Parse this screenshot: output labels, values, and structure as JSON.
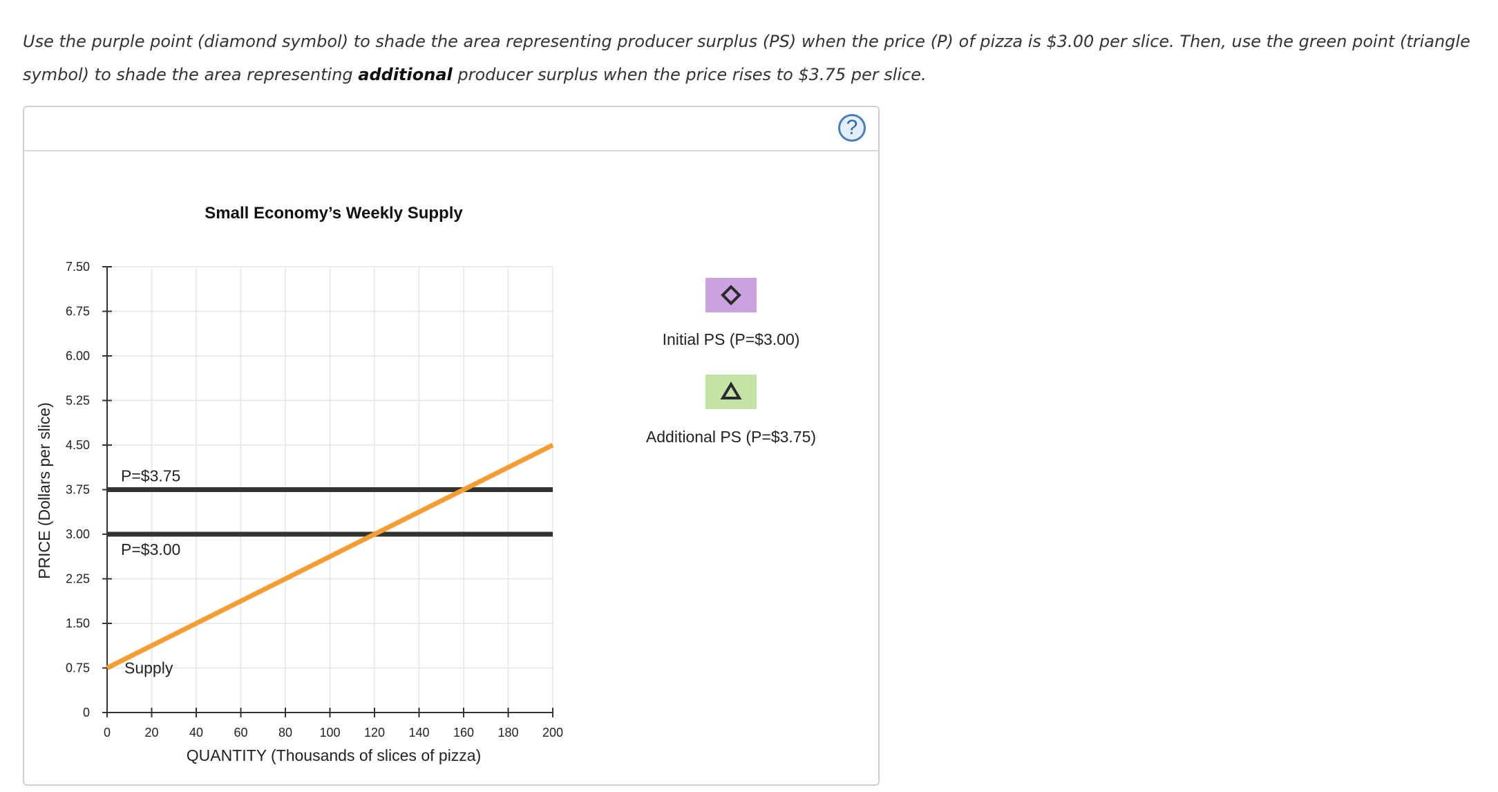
{
  "instructions": {
    "part1": "Use the purple point (diamond symbol) to shade the area representing producer surplus (PS) when the price (P) of pizza is $3.00 per slice. Then, use the green point (triangle symbol) to shade the area representing ",
    "bold": "additional",
    "part2": " producer surplus when the price rises to $3.75 per slice."
  },
  "help_button": {
    "label": "?",
    "icon": "question-circle-icon"
  },
  "colors": {
    "supply": "#F29E34",
    "price_line": "#333333",
    "grid": "#e6e6e6",
    "axis": "#333333",
    "initial_ps": "#C9A2DE",
    "additional_ps": "#C4E3A6"
  },
  "chart_data": {
    "type": "line",
    "title": "Small Economy’s Weekly Supply",
    "xlabel": "QUANTITY (Thousands of slices of pizza)",
    "ylabel": "PRICE (Dollars per slice)",
    "xlim": [
      0,
      200
    ],
    "ylim": [
      0,
      7.5
    ],
    "x_ticks": [
      0,
      20,
      40,
      60,
      80,
      100,
      120,
      140,
      160,
      180,
      200
    ],
    "y_ticks": [
      0,
      0.75,
      1.5,
      2.25,
      3.0,
      3.75,
      4.5,
      5.25,
      6.0,
      6.75,
      7.5
    ],
    "x_tick_labels": [
      "0",
      "20",
      "40",
      "60",
      "80",
      "100",
      "120",
      "140",
      "160",
      "180",
      "200"
    ],
    "y_tick_labels": [
      "0",
      "0.75",
      "1.50",
      "2.25",
      "3.00",
      "3.75",
      "4.50",
      "5.25",
      "6.00",
      "6.75",
      "7.50"
    ],
    "grid": true,
    "series": [
      {
        "name": "Supply",
        "x": [
          0,
          200
        ],
        "y": [
          0.75,
          4.5
        ],
        "color": "#F29E34"
      }
    ],
    "price_lines": [
      {
        "label": "P=$3.75",
        "price": 3.75,
        "x_start": 0,
        "x_end": 200
      },
      {
        "label": "P=$3.00",
        "price": 3.0,
        "x_start": 0,
        "x_end": 200
      }
    ],
    "legend": [
      {
        "label": "Initial PS (P=$3.00)",
        "symbol": "diamond",
        "icon": "diamond-icon",
        "color": "#C9A2DE"
      },
      {
        "label": "Additional PS (P=$3.75)",
        "symbol": "triangle",
        "icon": "triangle-icon",
        "color": "#C4E3A6"
      }
    ],
    "legend_position": "right"
  }
}
